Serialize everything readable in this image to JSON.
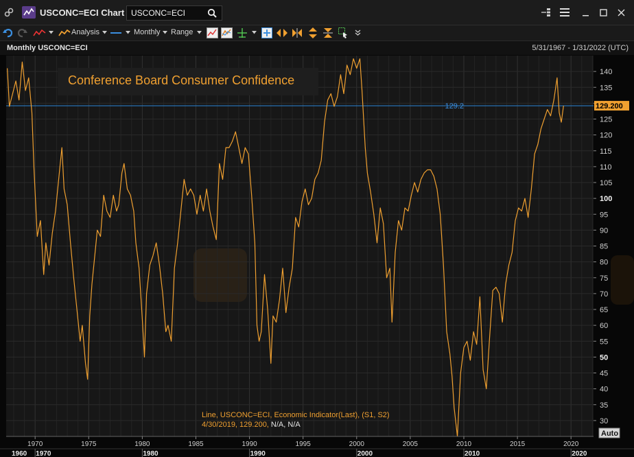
{
  "window": {
    "title": "USCONC=ECI Chart",
    "search_value": "USCONC=ECI"
  },
  "toolbar": {
    "analysis_label": "Analysis",
    "interval_label": "Monthly",
    "range_label": "Range"
  },
  "chart_header": {
    "series_caption": "Monthly USCONC=ECI",
    "date_range": "5/31/1967 - 1/31/2022 (UTC)"
  },
  "chart_data": {
    "type": "line",
    "title": "Conference Board Consumer Confidence",
    "series": [
      {
        "name": "USCONC=ECI",
        "color": "#f0a030",
        "x": [
          1967.4,
          1967.6,
          1967.9,
          1968.2,
          1968.5,
          1968.8,
          1969.1,
          1969.4,
          1969.7,
          1969.9,
          1970.2,
          1970.5,
          1970.8,
          1971.0,
          1971.3,
          1971.6,
          1971.9,
          1972.2,
          1972.5,
          1972.7,
          1973.0,
          1973.3,
          1973.6,
          1973.9,
          1974.2,
          1974.4,
          1974.7,
          1974.9,
          1975.1,
          1975.3,
          1975.6,
          1975.8,
          1976.1,
          1976.4,
          1976.7,
          1977.0,
          1977.3,
          1977.6,
          1977.8,
          1978.1,
          1978.3,
          1978.6,
          1978.9,
          1979.2,
          1979.4,
          1979.7,
          1980.0,
          1980.2,
          1980.4,
          1980.7,
          1981.0,
          1981.3,
          1981.6,
          1981.9,
          1982.2,
          1982.4,
          1982.7,
          1983.0,
          1983.3,
          1983.6,
          1983.9,
          1984.2,
          1984.5,
          1984.8,
          1985.1,
          1985.4,
          1985.7,
          1986.0,
          1986.3,
          1986.6,
          1986.9,
          1987.2,
          1987.5,
          1987.8,
          1988.1,
          1988.4,
          1988.7,
          1989.0,
          1989.3,
          1989.6,
          1989.9,
          1990.2,
          1990.5,
          1990.7,
          1990.9,
          1991.1,
          1991.4,
          1991.7,
          1992.0,
          1992.2,
          1992.5,
          1992.8,
          1993.1,
          1993.4,
          1993.7,
          1994.0,
          1994.3,
          1994.6,
          1994.9,
          1995.2,
          1995.5,
          1995.8,
          1996.1,
          1996.4,
          1996.7,
          1997.0,
          1997.3,
          1997.6,
          1997.9,
          1998.2,
          1998.5,
          1998.8,
          1999.1,
          1999.4,
          1999.7,
          2000.0,
          2000.3,
          2000.5,
          2000.8,
          2001.0,
          2001.3,
          2001.6,
          2001.9,
          2002.2,
          2002.5,
          2002.8,
          2003.1,
          2003.3,
          2003.6,
          2003.9,
          2004.2,
          2004.5,
          2004.8,
          2005.1,
          2005.4,
          2005.7,
          2006.0,
          2006.3,
          2006.6,
          2006.9,
          2007.2,
          2007.5,
          2007.8,
          2008.1,
          2008.4,
          2008.7,
          2008.9,
          2009.1,
          2009.4,
          2009.7,
          2010.0,
          2010.3,
          2010.6,
          2010.9,
          2011.2,
          2011.5,
          2011.8,
          2012.1,
          2012.4,
          2012.7,
          2013.0,
          2013.3,
          2013.6,
          2013.9,
          2014.2,
          2014.5,
          2014.8,
          2015.1,
          2015.4,
          2015.7,
          2016.0,
          2016.3,
          2016.6,
          2016.9,
          2017.2,
          2017.5,
          2017.8,
          2018.1,
          2018.4,
          2018.7,
          2018.9,
          2019.1,
          2019.3
        ],
        "y": [
          141,
          129,
          133,
          137,
          131,
          143,
          134,
          138,
          127,
          109,
          88,
          93,
          76,
          86,
          79,
          89,
          96,
          106,
          116,
          103,
          98,
          86,
          75,
          65,
          55,
          60,
          48,
          43,
          63,
          73,
          83,
          90,
          88,
          101,
          96,
          94,
          101,
          96,
          98,
          108,
          111,
          103,
          101,
          96,
          86,
          78,
          62,
          50,
          70,
          79,
          82,
          86,
          79,
          70,
          58,
          60,
          55,
          78,
          86,
          96,
          106,
          101,
          103,
          101,
          95,
          101,
          96,
          103,
          96,
          91,
          87,
          111,
          106,
          116,
          116,
          118,
          121,
          116,
          111,
          116,
          114,
          101,
          86,
          60,
          55,
          58,
          76,
          65,
          48,
          63,
          61,
          68,
          78,
          64,
          72,
          78,
          94,
          91,
          99,
          103,
          98,
          100,
          106,
          108,
          112,
          124,
          131,
          133,
          129,
          132,
          139,
          133,
          142,
          139,
          144,
          141,
          144,
          134,
          116,
          108,
          102,
          95,
          86,
          97,
          92,
          75,
          78,
          61,
          83,
          93,
          90,
          97,
          96,
          101,
          105,
          102,
          106,
          108,
          109,
          109,
          107,
          103,
          95,
          79,
          58,
          51,
          44,
          34,
          25,
          45,
          53,
          55,
          49,
          58,
          54,
          69,
          46,
          40,
          56,
          71,
          72,
          70,
          61,
          73,
          79,
          83,
          93,
          97,
          96,
          100,
          94,
          103,
          114,
          117,
          122,
          125,
          128,
          126,
          131,
          138,
          127,
          124,
          129.2
        ]
      }
    ],
    "xlim": [
      1967.3,
      2022.1
    ],
    "ylim": [
      25,
      145
    ],
    "y_ticks": [
      30,
      35,
      40,
      45,
      50,
      55,
      60,
      65,
      70,
      75,
      80,
      85,
      90,
      95,
      100,
      105,
      110,
      115,
      120,
      125,
      130,
      135,
      140
    ],
    "y_ticks_bold": [
      50,
      100
    ],
    "x_ticks": [
      1970,
      1975,
      1980,
      1985,
      1990,
      1995,
      2000,
      2005,
      2010,
      2015,
      2020
    ],
    "decade_labels": [
      "1960",
      "1970",
      "1980",
      "1990",
      "2000",
      "2010",
      "2020"
    ],
    "reference_line": {
      "value": 129.2,
      "label": "129.2",
      "color": "#2a86d8"
    },
    "last_value_label": "129.200",
    "legend": {
      "line1": "Line, USCONC=ECI, Economic Indicator(Last), (S1, S2)",
      "line2_date_value": "4/30/2019, 129.200,",
      "line2_rest": " N/A, N/A"
    },
    "axis_button": "Auto",
    "grid": true
  }
}
